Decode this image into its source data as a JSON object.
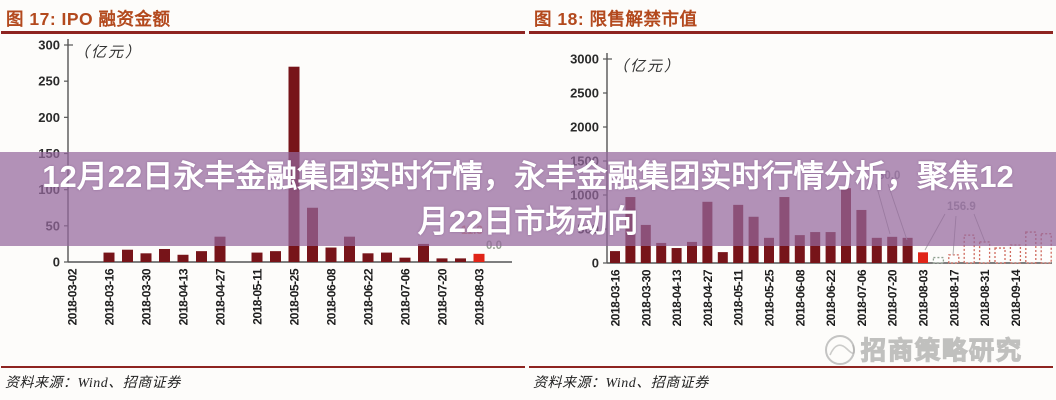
{
  "overlay": {
    "line1": "12月22日永丰金融集团实时行情，永丰金融集团实时行情分析，聚焦12",
    "line2": "月22日市场动向"
  },
  "watermark": {
    "text": "招商策略研究",
    "logo": "circle-seal-logo"
  },
  "colors": {
    "title": "#b3491d",
    "rule": "#8e2420",
    "bar": "#771419",
    "bar_highlight": "#e02417",
    "forecast_outline": "#cf6a5e",
    "forecast_first_outline": "#8fa08f",
    "axis": "#555555",
    "leader_line": "#aaaaaa"
  },
  "chart_data": [
    {
      "type": "bar",
      "title": "图 17: IPO 融资金额",
      "unit_label": "（亿元）",
      "source": "资料来源：Wind、招商证券",
      "ylim": [
        0,
        300
      ],
      "yticks": [
        0,
        50,
        100,
        150,
        200,
        250,
        300
      ],
      "tick_labels": [
        "2018-03-02",
        "2018-03-16",
        "2018-03-30",
        "2018-04-13",
        "2018-04-27",
        "2018-05-11",
        "2018-05-25",
        "2018-06-08",
        "2018-06-22",
        "2018-07-06",
        "2018-07-20",
        "2018-08-03"
      ],
      "x_note": "weekly bars, axis labels every second bar",
      "values": [
        0,
        0,
        13,
        17,
        12,
        18,
        10,
        15,
        35,
        0,
        13,
        15,
        270,
        75,
        20,
        35,
        12,
        13,
        6,
        25,
        5,
        5,
        11.3,
        0
      ],
      "highlight_index": 22,
      "dashed_from": null,
      "annotations": [
        {
          "text": "11.3",
          "color": "#e39383"
        },
        {
          "text": "0.0",
          "color": "#97a094"
        }
      ],
      "legend": "none",
      "grid": "off"
    },
    {
      "type": "bar",
      "title": "图 18: 限售解禁市值",
      "unit_label": "（亿元）",
      "source": "资料来源：Wind、招商证券",
      "ylim": [
        0,
        3000
      ],
      "yticks": [
        0,
        500,
        1000,
        1500,
        2000,
        2500,
        3000
      ],
      "tick_labels": [
        "2018-03-16",
        "2018-03-30",
        "2018-04-13",
        "2018-04-27",
        "2018-05-11",
        "2018-05-25",
        "2018-06-08",
        "2018-06-22",
        "2018-07-06",
        "2018-07-20",
        "2018-08-03",
        "2018-08-17",
        "2018-08-31",
        "2018-09-14"
      ],
      "x_note": "weekly bars, axis labels every second bar, dashed bars after 2018-08-03 are upcoming unlocks",
      "values": [
        175,
        970,
        560,
        295,
        220,
        310,
        900,
        160,
        855,
        680,
        370,
        970,
        410,
        455,
        455,
        1100,
        780,
        370,
        385,
        370,
        156.9,
        80,
        120,
        410,
        310,
        220,
        265,
        455,
        430
      ],
      "highlight_index": 20,
      "dashed_from": 21,
      "annotations": [
        {
          "text": "80.0",
          "color": "#9a9aa0"
        },
        {
          "text": "156.9",
          "color": "#9a9aa0"
        }
      ],
      "legend": "none",
      "grid": "off"
    }
  ]
}
